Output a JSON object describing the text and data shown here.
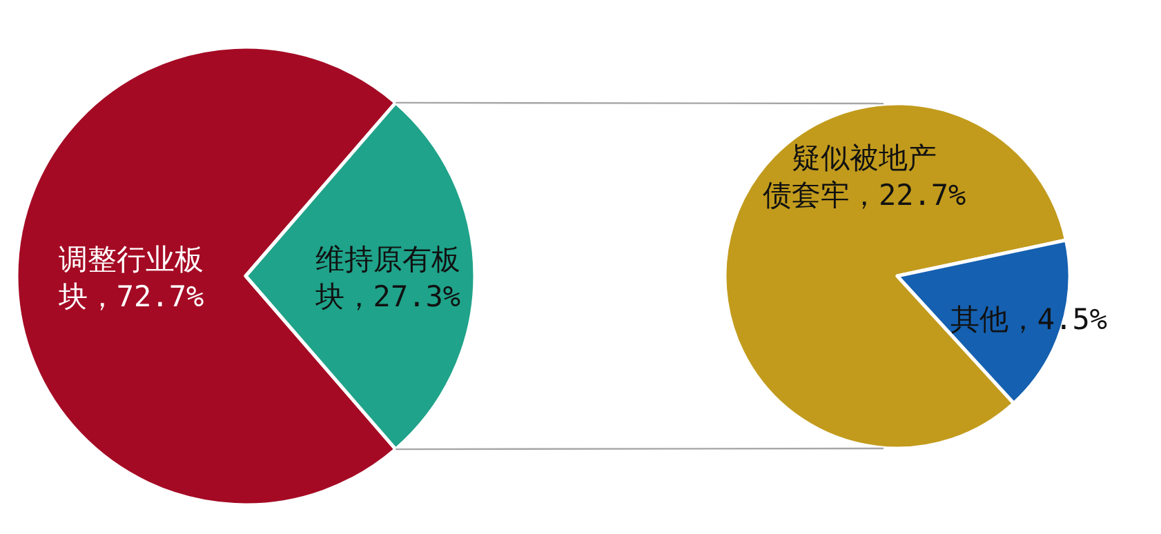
{
  "chart_data": [
    {
      "type": "pie",
      "categories": [
        "调整行业板块",
        "维持原有板块"
      ],
      "values": [
        72.7,
        27.3
      ],
      "value_labels": [
        "72.7%",
        "27.3%"
      ],
      "colors": [
        "#a50a24",
        "#1fa38a"
      ]
    },
    {
      "type": "pie",
      "categories": [
        "疑似被地产债套牢",
        "其他"
      ],
      "values": [
        22.7,
        4.5
      ],
      "value_labels": [
        "22.7%",
        "4.5%"
      ],
      "colors": [
        "#c29b1d",
        "#1560b0"
      ]
    }
  ]
}
